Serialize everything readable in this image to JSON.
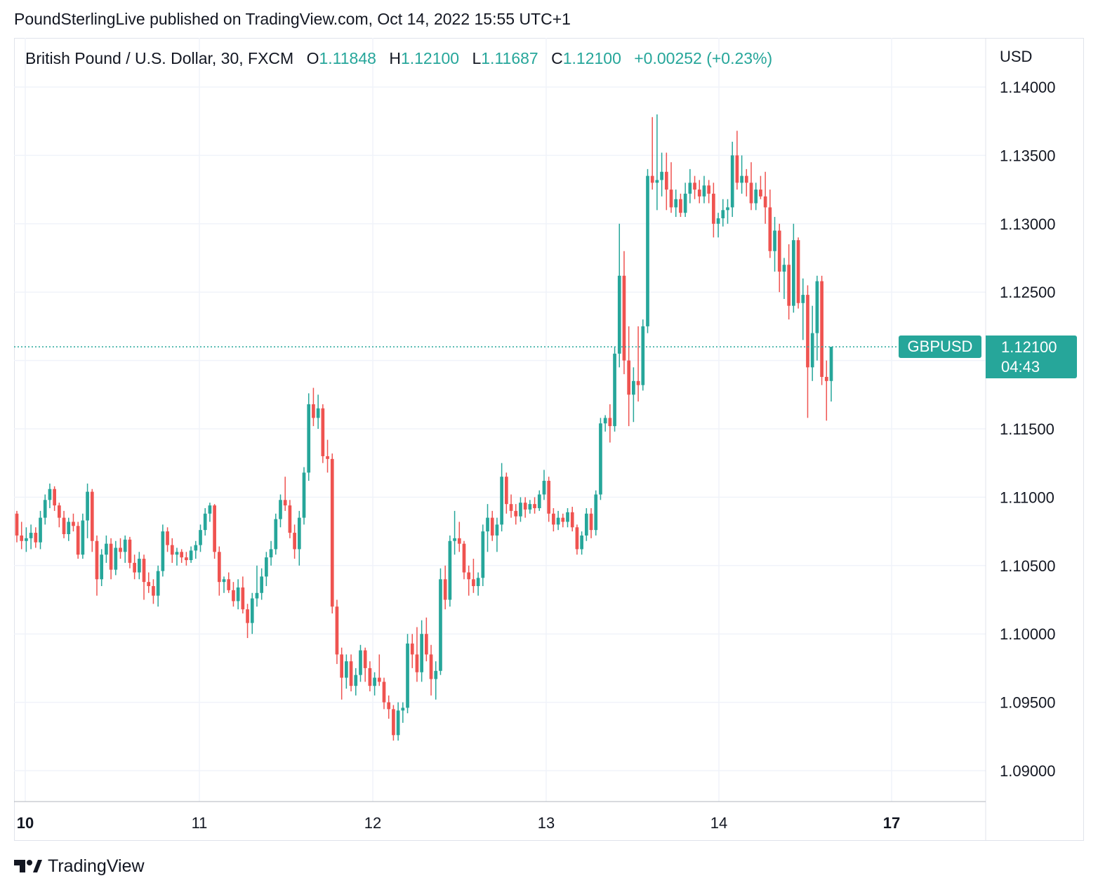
{
  "header": {
    "publisher_line": "PoundSterlingLive published on TradingView.com, Oct 14, 2022 15:55 UTC+1"
  },
  "legend": {
    "symbol": "British Pound / U.S. Dollar, 30, FXCM",
    "open_label": "O",
    "open_value": "1.11848",
    "high_label": "H",
    "high_value": "1.12100",
    "low_label": "L",
    "low_value": "1.11687",
    "close_label": "C",
    "close_value": "1.12100",
    "change": "+0.00252 (+0.23%)"
  },
  "price_axis": {
    "currency": "USD"
  },
  "last_price": {
    "ticker": "GBPUSD",
    "price": "1.12100",
    "countdown": "04:43"
  },
  "footer": {
    "brand": "TradingView"
  },
  "colors": {
    "up": "#26a69a",
    "down": "#ef5350",
    "grid": "#f0f3fa",
    "text": "#131722"
  },
  "chart_data": {
    "type": "candlestick",
    "symbol": "GBPUSD",
    "interval": "30",
    "ylabel": "USD",
    "ylim": [
      1.0877,
      1.1435
    ],
    "yticks": [
      "1.14000",
      "1.13500",
      "1.13000",
      "1.12500",
      "1.12000",
      "1.11500",
      "1.11000",
      "1.10500",
      "1.10000",
      "1.09500",
      "1.09000"
    ],
    "xticks": [
      "10",
      "11",
      "12",
      "13",
      "14",
      "17"
    ],
    "grid": true,
    "last_price_line": 1.121,
    "candles": [
      [
        1.1088,
        1.109,
        1.1067,
        1.1072
      ],
      [
        1.1072,
        1.1082,
        1.1062,
        1.1068
      ],
      [
        1.1068,
        1.1078,
        1.106,
        1.107
      ],
      [
        1.107,
        1.108,
        1.1062,
        1.1074
      ],
      [
        1.1074,
        1.1078,
        1.1063,
        1.1067
      ],
      [
        1.1067,
        1.109,
        1.1062,
        1.1085
      ],
      [
        1.1085,
        1.1102,
        1.108,
        1.1098
      ],
      [
        1.1098,
        1.111,
        1.1092,
        1.1106
      ],
      [
        1.1106,
        1.1108,
        1.109,
        1.1094
      ],
      [
        1.1094,
        1.1096,
        1.1078,
        1.1085
      ],
      [
        1.1085,
        1.109,
        1.107,
        1.1073
      ],
      [
        1.1073,
        1.1085,
        1.1068,
        1.1082
      ],
      [
        1.1082,
        1.1088,
        1.1075,
        1.1079
      ],
      [
        1.1079,
        1.1082,
        1.1055,
        1.1058
      ],
      [
        1.1058,
        1.1088,
        1.1055,
        1.1083
      ],
      [
        1.1083,
        1.111,
        1.107,
        1.1104
      ],
      [
        1.1104,
        1.1106,
        1.106,
        1.1068
      ],
      [
        1.1068,
        1.1072,
        1.1028,
        1.104
      ],
      [
        1.104,
        1.1062,
        1.1035,
        1.1058
      ],
      [
        1.1058,
        1.1072,
        1.1052,
        1.1066
      ],
      [
        1.1066,
        1.107,
        1.104,
        1.1047
      ],
      [
        1.1047,
        1.1068,
        1.1043,
        1.1063
      ],
      [
        1.1063,
        1.107,
        1.1055,
        1.106
      ],
      [
        1.106,
        1.1072,
        1.1052,
        1.1069
      ],
      [
        1.1069,
        1.1071,
        1.1048,
        1.1052
      ],
      [
        1.1052,
        1.1058,
        1.104,
        1.1045
      ],
      [
        1.1045,
        1.106,
        1.104,
        1.1055
      ],
      [
        1.1055,
        1.1058,
        1.1025,
        1.1038
      ],
      [
        1.1038,
        1.1045,
        1.103,
        1.1035
      ],
      [
        1.1035,
        1.104,
        1.1022,
        1.1028
      ],
      [
        1.1028,
        1.105,
        1.102,
        1.1046
      ],
      [
        1.1046,
        1.108,
        1.1042,
        1.1075
      ],
      [
        1.1075,
        1.1078,
        1.106,
        1.1065
      ],
      [
        1.1065,
        1.107,
        1.1052,
        1.1058
      ],
      [
        1.1058,
        1.1063,
        1.105,
        1.106
      ],
      [
        1.106,
        1.1062,
        1.1052,
        1.1056
      ],
      [
        1.1056,
        1.106,
        1.105,
        1.1054
      ],
      [
        1.1054,
        1.1064,
        1.1052,
        1.1061
      ],
      [
        1.1061,
        1.1068,
        1.1055,
        1.1065
      ],
      [
        1.1065,
        1.108,
        1.106,
        1.1076
      ],
      [
        1.1076,
        1.1092,
        1.1072,
        1.1088
      ],
      [
        1.1088,
        1.1096,
        1.1082,
        1.1094
      ],
      [
        1.1094,
        1.1095,
        1.1055,
        1.106
      ],
      [
        1.106,
        1.1064,
        1.1028,
        1.1038
      ],
      [
        1.1038,
        1.1042,
        1.103,
        1.104
      ],
      [
        1.104,
        1.1045,
        1.103,
        1.1032
      ],
      [
        1.1032,
        1.1038,
        1.102,
        1.1024
      ],
      [
        1.1024,
        1.104,
        1.1018,
        1.1034
      ],
      [
        1.1034,
        1.1042,
        1.1015,
        1.1018
      ],
      [
        1.1018,
        1.1022,
        1.0997,
        1.1008
      ],
      [
        1.1008,
        1.103,
        1.1,
        1.1026
      ],
      [
        1.1026,
        1.105,
        1.102,
        1.103
      ],
      [
        1.103,
        1.1048,
        1.1025,
        1.1042
      ],
      [
        1.1042,
        1.106,
        1.1035,
        1.1056
      ],
      [
        1.1056,
        1.1068,
        1.105,
        1.1062
      ],
      [
        1.1062,
        1.1088,
        1.1058,
        1.1084
      ],
      [
        1.1084,
        1.1102,
        1.1078,
        1.1098
      ],
      [
        1.1098,
        1.1115,
        1.109,
        1.1094
      ],
      [
        1.1094,
        1.1098,
        1.107,
        1.1074
      ],
      [
        1.1074,
        1.108,
        1.1055,
        1.1062
      ],
      [
        1.1062,
        1.109,
        1.105,
        1.1085
      ],
      [
        1.1085,
        1.1122,
        1.108,
        1.1118
      ],
      [
        1.1118,
        1.1176,
        1.1112,
        1.1168
      ],
      [
        1.1168,
        1.118,
        1.1152,
        1.1158
      ],
      [
        1.1158,
        1.1175,
        1.115,
        1.1165
      ],
      [
        1.1165,
        1.1168,
        1.1125,
        1.113
      ],
      [
        1.113,
        1.1142,
        1.1118,
        1.1128
      ],
      [
        1.1128,
        1.1132,
        1.1015,
        1.102
      ],
      [
        1.102,
        1.1025,
        1.0978,
        1.0985
      ],
      [
        1.0985,
        1.099,
        1.0952,
        1.0968
      ],
      [
        1.0968,
        1.0985,
        1.096,
        1.098
      ],
      [
        1.098,
        1.0985,
        1.0958,
        1.0962
      ],
      [
        1.0962,
        1.0975,
        1.0955,
        1.097
      ],
      [
        1.097,
        1.0992,
        1.0965,
        1.0988
      ],
      [
        1.0988,
        1.099,
        1.0965,
        1.0975
      ],
      [
        1.0975,
        1.098,
        1.0958,
        1.0962
      ],
      [
        1.0962,
        1.0972,
        1.0955,
        1.0968
      ],
      [
        1.0968,
        1.0985,
        1.0962,
        1.0965
      ],
      [
        1.0965,
        1.0968,
        1.0945,
        1.095
      ],
      [
        1.095,
        1.0955,
        1.0938,
        1.0945
      ],
      [
        1.0945,
        1.0948,
        1.0922,
        1.0926
      ],
      [
        1.0926,
        1.095,
        1.0922,
        1.0944
      ],
      [
        1.0944,
        1.095,
        1.0935,
        1.0946
      ],
      [
        1.0946,
        1.1,
        1.0942,
        1.0993
      ],
      [
        1.0993,
        1.1,
        1.0975,
        1.0985
      ],
      [
        1.0985,
        1.1005,
        1.0965,
        1.0972
      ],
      [
        1.0972,
        1.101,
        1.0965,
        1.1
      ],
      [
        1.1,
        1.1012,
        1.098,
        1.0985
      ],
      [
        1.0985,
        1.0992,
        1.0955,
        1.0967
      ],
      [
        1.0967,
        1.098,
        1.0952,
        1.0973
      ],
      [
        1.0973,
        1.1048,
        1.097,
        1.104
      ],
      [
        1.104,
        1.105,
        1.1018,
        1.1025
      ],
      [
        1.1025,
        1.1072,
        1.102,
        1.1068
      ],
      [
        1.1068,
        1.109,
        1.1058,
        1.107
      ],
      [
        1.107,
        1.1082,
        1.106,
        1.1066
      ],
      [
        1.1066,
        1.1068,
        1.104,
        1.1045
      ],
      [
        1.1045,
        1.105,
        1.1028,
        1.104
      ],
      [
        1.104,
        1.1055,
        1.103,
        1.1035
      ],
      [
        1.1035,
        1.1045,
        1.1028,
        1.1041
      ],
      [
        1.1041,
        1.108,
        1.1035,
        1.1075
      ],
      [
        1.1075,
        1.1095,
        1.106,
        1.1085
      ],
      [
        1.1085,
        1.109,
        1.1068,
        1.1072
      ],
      [
        1.1072,
        1.1085,
        1.106,
        1.108
      ],
      [
        1.108,
        1.1125,
        1.1075,
        1.1115
      ],
      [
        1.1115,
        1.1118,
        1.1088,
        1.1095
      ],
      [
        1.1095,
        1.1102,
        1.1085,
        1.109
      ],
      [
        1.109,
        1.1095,
        1.108,
        1.1086
      ],
      [
        1.1086,
        1.11,
        1.1082,
        1.1096
      ],
      [
        1.1096,
        1.11,
        1.1085,
        1.1091
      ],
      [
        1.1091,
        1.1098,
        1.1088,
        1.1095
      ],
      [
        1.1095,
        1.11,
        1.1088,
        1.1092
      ],
      [
        1.1092,
        1.1105,
        1.109,
        1.1102
      ],
      [
        1.1102,
        1.112,
        1.1098,
        1.1112
      ],
      [
        1.1112,
        1.1115,
        1.1082,
        1.1088
      ],
      [
        1.1088,
        1.1092,
        1.1075,
        1.108
      ],
      [
        1.108,
        1.109,
        1.1076,
        1.1085
      ],
      [
        1.1085,
        1.1088,
        1.1078,
        1.1082
      ],
      [
        1.1082,
        1.1092,
        1.1078,
        1.1089
      ],
      [
        1.1089,
        1.1093,
        1.1075,
        1.1078
      ],
      [
        1.1078,
        1.108,
        1.1058,
        1.1062
      ],
      [
        1.1062,
        1.1075,
        1.1058,
        1.1072
      ],
      [
        1.1072,
        1.1092,
        1.1068,
        1.1088
      ],
      [
        1.1088,
        1.1092,
        1.107,
        1.1076
      ],
      [
        1.1076,
        1.1105,
        1.1072,
        1.1102
      ],
      [
        1.1102,
        1.1158,
        1.1098,
        1.1154
      ],
      [
        1.1154,
        1.116,
        1.1148,
        1.1158
      ],
      [
        1.1158,
        1.1168,
        1.114,
        1.1152
      ],
      [
        1.1152,
        1.121,
        1.1148,
        1.1205
      ],
      [
        1.1205,
        1.13,
        1.1195,
        1.1262
      ],
      [
        1.1262,
        1.128,
        1.119,
        1.12
      ],
      [
        1.12,
        1.1225,
        1.1152,
        1.1175
      ],
      [
        1.1175,
        1.1195,
        1.1155,
        1.1185
      ],
      [
        1.1185,
        1.1225,
        1.117,
        1.1182
      ],
      [
        1.1182,
        1.123,
        1.1178,
        1.1225
      ],
      [
        1.1225,
        1.134,
        1.122,
        1.1335
      ],
      [
        1.1335,
        1.1378,
        1.1325,
        1.133
      ],
      [
        1.133,
        1.138,
        1.131,
        1.1332
      ],
      [
        1.1332,
        1.1352,
        1.132,
        1.1338
      ],
      [
        1.1338,
        1.1352,
        1.131,
        1.1325
      ],
      [
        1.1325,
        1.1345,
        1.1308,
        1.1312
      ],
      [
        1.1312,
        1.1325,
        1.1305,
        1.1318
      ],
      [
        1.1318,
        1.1322,
        1.1305,
        1.1308
      ],
      [
        1.1308,
        1.133,
        1.1305,
        1.1322
      ],
      [
        1.1322,
        1.134,
        1.1315,
        1.133
      ],
      [
        1.133,
        1.1335,
        1.1318,
        1.1325
      ],
      [
        1.1325,
        1.1332,
        1.1315,
        1.132
      ],
      [
        1.132,
        1.1335,
        1.1315,
        1.1328
      ],
      [
        1.1328,
        1.1332,
        1.1315,
        1.1322
      ],
      [
        1.1322,
        1.133,
        1.129,
        1.13
      ],
      [
        1.13,
        1.1308,
        1.129,
        1.1304
      ],
      [
        1.1304,
        1.1318,
        1.1298,
        1.131
      ],
      [
        1.131,
        1.1318,
        1.13,
        1.1312
      ],
      [
        1.1312,
        1.136,
        1.1305,
        1.135
      ],
      [
        1.135,
        1.1368,
        1.1325,
        1.133
      ],
      [
        1.133,
        1.135,
        1.1322,
        1.1335
      ],
      [
        1.1335,
        1.134,
        1.132,
        1.133
      ],
      [
        1.133,
        1.1345,
        1.131,
        1.1315
      ],
      [
        1.1315,
        1.133,
        1.131,
        1.1325
      ],
      [
        1.1325,
        1.1335,
        1.1318,
        1.132
      ],
      [
        1.132,
        1.1338,
        1.13,
        1.1312
      ],
      [
        1.1312,
        1.1325,
        1.1275,
        1.128
      ],
      [
        1.128,
        1.1305,
        1.1265,
        1.1295
      ],
      [
        1.1295,
        1.13,
        1.125,
        1.1265
      ],
      [
        1.1265,
        1.1275,
        1.1245,
        1.127
      ],
      [
        1.127,
        1.1285,
        1.123,
        1.124
      ],
      [
        1.124,
        1.13,
        1.1235,
        1.1288
      ],
      [
        1.1288,
        1.129,
        1.1238,
        1.1242
      ],
      [
        1.1242,
        1.126,
        1.1215,
        1.1248
      ],
      [
        1.1248,
        1.1255,
        1.1158,
        1.1195
      ],
      [
        1.1195,
        1.124,
        1.1185,
        1.122
      ],
      [
        1.122,
        1.1262,
        1.12,
        1.1258
      ],
      [
        1.1258,
        1.1262,
        1.1182,
        1.1188
      ],
      [
        1.1188,
        1.12,
        1.1156,
        1.1185
      ],
      [
        1.1185,
        1.121,
        1.117,
        1.121
      ]
    ]
  }
}
